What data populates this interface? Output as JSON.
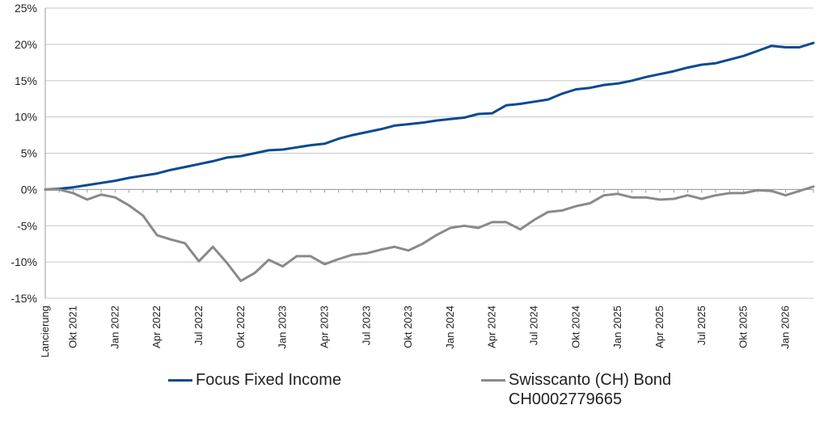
{
  "colors": {
    "series1": "#0a4a8f",
    "series2": "#8a8a8a",
    "grid": "#c8c8c8"
  },
  "chart_data": {
    "type": "line",
    "title": "",
    "xlabel": "",
    "ylabel": "",
    "ylim": [
      -15,
      25
    ],
    "y_ticks": [
      25,
      20,
      15,
      10,
      5,
      0,
      -5,
      -10,
      -15
    ],
    "y_tick_labels": [
      "25%",
      "20%",
      "15%",
      "10%",
      "5%",
      "0%",
      "-5%",
      "-10%",
      "-15%"
    ],
    "x_tick_labels": [
      "Lancierung",
      "Okt 2021",
      "Jan 2022",
      "Apr 2022",
      "Jul 2022",
      "Okt 2022",
      "Jan 2023",
      "Apr 2023",
      "Jul 2023",
      "Okt 2023",
      "Jan 2024",
      "Apr 2024",
      "Jul 2024",
      "Okt 2024",
      "Jan 2025",
      "Apr 2025",
      "Jul 2025",
      "Okt 2025",
      "Jan 2026"
    ],
    "months_per_tick": 3,
    "grid": "horizontal",
    "legend_position": "bottom",
    "series": [
      {
        "name": "Focus Fixed Income",
        "values": [
          0,
          0.1,
          0.3,
          0.6,
          0.9,
          1.2,
          1.6,
          1.9,
          2.2,
          2.7,
          3.1,
          3.5,
          3.9,
          4.4,
          4.6,
          5.0,
          5.4,
          5.5,
          5.8,
          6.1,
          6.3,
          7.0,
          7.5,
          7.9,
          8.3,
          8.8,
          9.0,
          9.2,
          9.5,
          9.7,
          9.9,
          10.4,
          10.5,
          11.6,
          11.8,
          12.1,
          12.4,
          13.2,
          13.8,
          14.0,
          14.4,
          14.6,
          15.0,
          15.5,
          15.9,
          16.3,
          16.8,
          17.2,
          17.4,
          17.9,
          18.4,
          19.1,
          19.8,
          19.6,
          19.6,
          20.2
        ]
      },
      {
        "name": "Swisscanto (CH) Bond\nCH0002779665",
        "values": [
          0,
          0.0,
          -0.5,
          -1.4,
          -0.7,
          -1.1,
          -2.2,
          -3.6,
          -6.3,
          -6.9,
          -7.4,
          -9.9,
          -7.9,
          -10.1,
          -12.6,
          -11.5,
          -9.7,
          -10.6,
          -9.2,
          -9.2,
          -10.3,
          -9.6,
          -9.0,
          -8.8,
          -8.3,
          -7.9,
          -8.4,
          -7.5,
          -6.3,
          -5.3,
          -5.0,
          -5.3,
          -4.5,
          -4.5,
          -5.5,
          -4.2,
          -3.1,
          -2.9,
          -2.3,
          -1.9,
          -0.8,
          -0.6,
          -1.1,
          -1.1,
          -1.4,
          -1.3,
          -0.8,
          -1.3,
          -0.8,
          -0.5,
          -0.5,
          -0.1,
          -0.2,
          -0.8,
          -0.2,
          0.4
        ]
      }
    ]
  }
}
